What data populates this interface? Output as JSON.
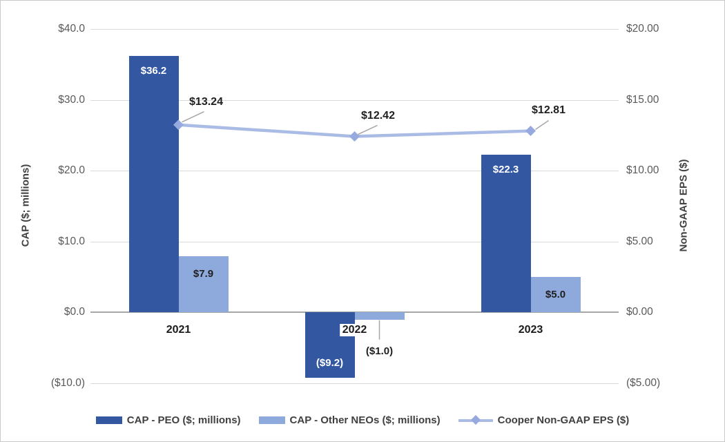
{
  "chart_data": {
    "type": "bar",
    "subtype": "grouped-bar-with-line-combo",
    "categories": [
      "2021",
      "2022",
      "2023"
    ],
    "series": [
      {
        "name": "CAP - PEO ($; millions)",
        "type": "bar",
        "axis": "left",
        "values": [
          36.2,
          -9.2,
          22.3
        ],
        "labels": [
          "$36.2",
          "($9.2)",
          "$22.3"
        ]
      },
      {
        "name": "CAP - Other NEOs ($; millions)",
        "type": "bar",
        "axis": "left",
        "values": [
          7.9,
          -1.0,
          5.0
        ],
        "labels": [
          "$7.9",
          "($1.0)",
          "$5.0"
        ]
      },
      {
        "name": "Cooper Non-GAAP EPS ($)",
        "type": "line",
        "axis": "right",
        "values": [
          13.24,
          12.42,
          12.81
        ],
        "labels": [
          "$13.24",
          "$12.42",
          "$12.81"
        ]
      }
    ],
    "left_axis": {
      "title": "CAP ($; millions)",
      "min": -10,
      "max": 40,
      "ticks": [
        {
          "v": 40,
          "label": "$40.0"
        },
        {
          "v": 30,
          "label": "$30.0"
        },
        {
          "v": 20,
          "label": "$20.0"
        },
        {
          "v": 10,
          "label": "$10.0"
        },
        {
          "v": 0,
          "label": "$0.0"
        },
        {
          "v": -10,
          "label": "($10.0)"
        }
      ]
    },
    "right_axis": {
      "title": "Non-GAAP EPS ($)",
      "min": -5,
      "max": 20,
      "ticks": [
        {
          "v": 20,
          "label": "$20.00"
        },
        {
          "v": 15,
          "label": "$15.00"
        },
        {
          "v": 10,
          "label": "$10.00"
        },
        {
          "v": 5,
          "label": "$5.00"
        },
        {
          "v": 0,
          "label": "$0.00"
        },
        {
          "v": -5,
          "label": "($5.00)"
        }
      ]
    },
    "grid": true,
    "legend_position": "bottom"
  },
  "colors": {
    "bar_peo": "#3357a1",
    "bar_neo": "#8ea9dc",
    "line": "#aabce5",
    "marker": "#96aadf",
    "gridline": "#d9d9d9",
    "zero_line": "#a6a6a6",
    "leader": "#a6a6a6",
    "tick_label": "#595959",
    "axis_title": "#404040",
    "data_label_dark": "#1f1f1f",
    "data_label_light": "#ffffff",
    "frame_border": "#c9c9c9"
  }
}
